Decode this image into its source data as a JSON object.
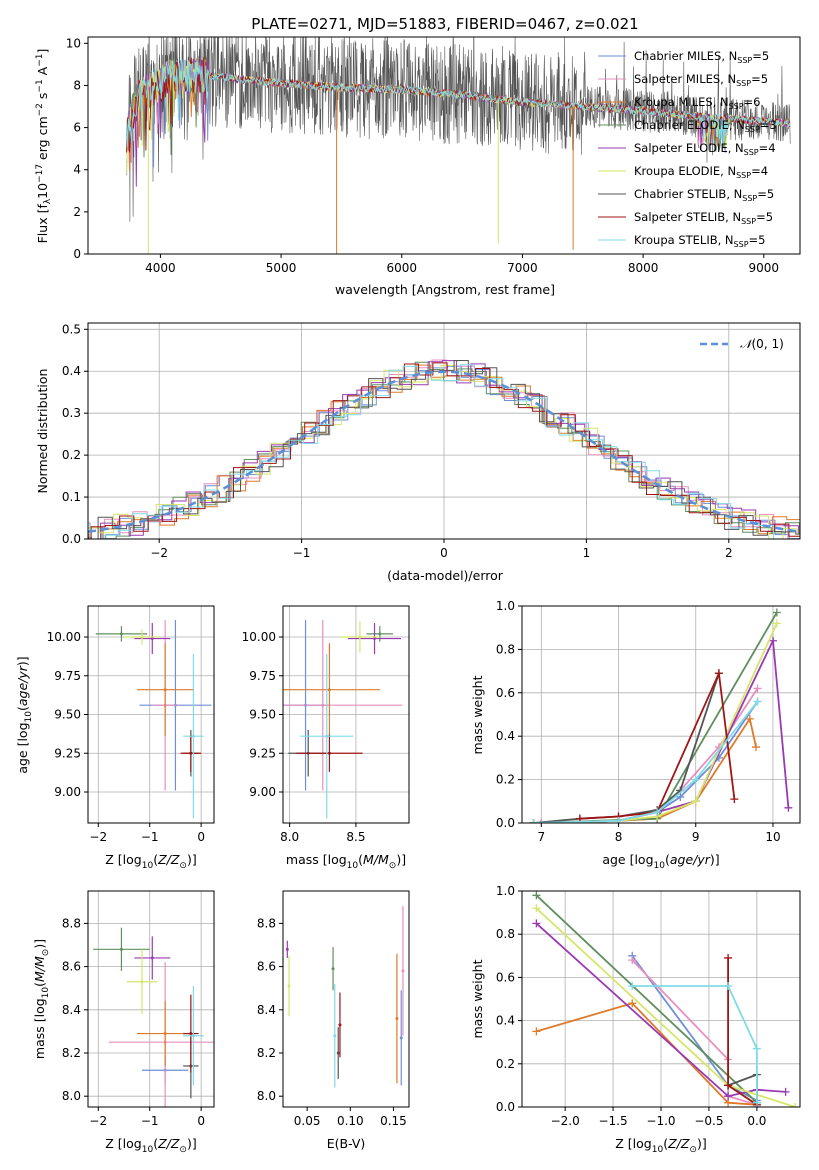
{
  "figure_title": "PLATE=0271, MJD=51883, FIBERID=0467, z=0.021",
  "colors": [
    "#6f8fd8",
    "#e88fc0",
    "#e07a2a",
    "#5f8f5f",
    "#9a3ab3",
    "#d6e66a",
    "#555555",
    "#a01515",
    "#7fdbe6"
  ],
  "models": [
    {
      "imf": "Chabrier",
      "lib": "MILES",
      "nssp": "5"
    },
    {
      "imf": "Salpeter",
      "lib": "MILES",
      "nssp": "5"
    },
    {
      "imf": "Kroupa",
      "lib": "MILES",
      "nssp": "6"
    },
    {
      "imf": "Chabrier",
      "lib": "ELODIE",
      "nssp": "3"
    },
    {
      "imf": "Salpeter",
      "lib": "ELODIE",
      "nssp": "4"
    },
    {
      "imf": "Kroupa",
      "lib": "ELODIE",
      "nssp": "4"
    },
    {
      "imf": "Chabrier",
      "lib": "STELIB",
      "nssp": "5"
    },
    {
      "imf": "Salpeter",
      "lib": "STELIB",
      "nssp": "5"
    },
    {
      "imf": "Kroupa",
      "lib": "STELIB",
      "nssp": "5"
    }
  ],
  "chart_data": [
    {
      "id": "spectrum",
      "type": "line",
      "title": "PLATE=0271, MJD=51883, FIBERID=0467, z=0.021",
      "xlabel": "wavelength [Angstrom, rest frame]",
      "ylabel": "Flux [f_λ 10^-17 erg cm^-2 s^-1 A^-1]",
      "xlim": [
        3400,
        9300
      ],
      "ylim": [
        0,
        10.3
      ],
      "xticks": [
        4000,
        5000,
        6000,
        7000,
        8000,
        9000
      ],
      "yticks": [
        0,
        2,
        4,
        6,
        8,
        10
      ],
      "grid": false,
      "legend": "top-right",
      "continuum": [
        [
          3720,
          5.6
        ],
        [
          3800,
          7.4
        ],
        [
          3900,
          7.8
        ],
        [
          4000,
          8.1
        ],
        [
          4100,
          8.4
        ],
        [
          4300,
          8.5
        ],
        [
          4500,
          8.4
        ],
        [
          5000,
          8.1
        ],
        [
          5500,
          7.9
        ],
        [
          6000,
          7.8
        ],
        [
          6500,
          7.55
        ],
        [
          7000,
          7.2
        ],
        [
          7500,
          7.0
        ],
        [
          8000,
          6.8
        ],
        [
          8500,
          6.5
        ],
        [
          9000,
          6.3
        ],
        [
          9220,
          6.2
        ]
      ],
      "data_extent": [
        3720,
        9220
      ],
      "dips": [
        {
          "model": 2,
          "x": 5460,
          "to": 0
        },
        {
          "model": 2,
          "x": 7420,
          "to": 0.2
        },
        {
          "model": 5,
          "x": 3900,
          "to": 0
        },
        {
          "model": 5,
          "x": 6800,
          "to": 0.5
        }
      ]
    },
    {
      "id": "residuals",
      "type": "area",
      "xlabel": "(data-model)/error",
      "ylabel": "Normed distribution",
      "xlim": [
        -2.5,
        2.5
      ],
      "ylim": [
        0,
        0.515
      ],
      "xticks": [
        -2,
        -1,
        0,
        1,
        2
      ],
      "yticks": [
        0.0,
        0.1,
        0.2,
        0.3,
        0.4,
        0.5
      ],
      "grid": true,
      "legend": "top-right",
      "bin_width": 0.1,
      "reference_series": "N(0,1)"
    },
    {
      "id": "Z_age",
      "type": "scatter",
      "xlabel": "Z [log10(Z/Z_sun)]",
      "ylabel": "age [log10(age/yr)]",
      "xlim": [
        -2.2,
        0.25
      ],
      "ylim": [
        8.8,
        10.2
      ],
      "xticks": [
        -2,
        -1,
        0
      ],
      "yticks": [
        9.0,
        9.25,
        9.5,
        9.75,
        10.0
      ],
      "grid": true,
      "points": [
        {
          "m": 0,
          "x": -0.5,
          "y": 9.56,
          "xerr": 0.7,
          "yerr": 0.55
        },
        {
          "m": 1,
          "x": -0.7,
          "y": 9.56,
          "xerr": 0.25,
          "yerr": 0.55
        },
        {
          "m": 2,
          "x": -0.7,
          "y": 9.66,
          "xerr": 0.55,
          "yerr": 0.3
        },
        {
          "m": 3,
          "x": -1.55,
          "y": 10.02,
          "xerr": 0.5,
          "yerr": 0.05
        },
        {
          "m": 4,
          "x": -0.95,
          "y": 9.99,
          "xerr": 0.35,
          "yerr": 0.1
        },
        {
          "m": 5,
          "x": -1.15,
          "y": 10.0,
          "xerr": 0.35,
          "yerr": 0.05
        },
        {
          "m": 6,
          "x": -0.2,
          "y": 9.25,
          "xerr": 0.15,
          "yerr": 0.15
        },
        {
          "m": 7,
          "x": -0.2,
          "y": 9.25,
          "xerr": 0.2,
          "yerr": 0.12
        },
        {
          "m": 8,
          "x": -0.15,
          "y": 9.36,
          "xerr": 0.2,
          "yerr": 0.53
        }
      ]
    },
    {
      "id": "mass_age",
      "type": "scatter",
      "xlabel": "mass [log10(M/M_sun)]",
      "ylabel": "",
      "xlim": [
        7.95,
        8.9
      ],
      "ylim": [
        8.8,
        10.2
      ],
      "xticks": [
        8.0,
        8.5
      ],
      "yticks": [
        9.0,
        9.25,
        9.5,
        9.75,
        10.0
      ],
      "grid": true,
      "points": [
        {
          "m": 0,
          "x": 8.12,
          "y": 9.56,
          "xerr": 0.17,
          "yerr": 0.55
        },
        {
          "m": 1,
          "x": 8.25,
          "y": 9.56,
          "xerr": 0.6,
          "yerr": 0.55
        },
        {
          "m": 2,
          "x": 8.3,
          "y": 9.66,
          "xerr": 0.38,
          "yerr": 0.3
        },
        {
          "m": 3,
          "x": 8.68,
          "y": 10.02,
          "xerr": 0.1,
          "yerr": 0.05
        },
        {
          "m": 4,
          "x": 8.64,
          "y": 9.99,
          "xerr": 0.2,
          "yerr": 0.1
        },
        {
          "m": 5,
          "x": 8.53,
          "y": 10.0,
          "xerr": 0.15,
          "yerr": 0.1
        },
        {
          "m": 6,
          "x": 8.14,
          "y": 9.25,
          "xerr": 0.15,
          "yerr": 0.15
        },
        {
          "m": 7,
          "x": 8.3,
          "y": 9.25,
          "xerr": 0.25,
          "yerr": 0.12
        },
        {
          "m": 8,
          "x": 8.28,
          "y": 9.36,
          "xerr": 0.2,
          "yerr": 0.53
        }
      ]
    },
    {
      "id": "age_weight",
      "type": "line",
      "xlabel": "age [log10(age/yr)]",
      "ylabel": "mass weight",
      "xlim": [
        6.75,
        10.35
      ],
      "ylim": [
        0,
        1.0
      ],
      "xticks": [
        7,
        8,
        9,
        10
      ],
      "yticks": [
        0.0,
        0.2,
        0.4,
        0.6,
        0.8,
        1.0
      ],
      "grid": true,
      "series": [
        {
          "m": 0,
          "x": [
            7.0,
            8.0,
            8.5,
            8.8,
            9.3,
            9.8
          ],
          "y": [
            0.0,
            0.01,
            0.05,
            0.12,
            0.3,
            0.56
          ]
        },
        {
          "m": 1,
          "x": [
            7.0,
            8.0,
            8.5,
            8.8,
            9.3,
            9.8
          ],
          "y": [
            0.0,
            0.01,
            0.05,
            0.15,
            0.35,
            0.62
          ]
        },
        {
          "m": 2,
          "x": [
            6.9,
            8.0,
            8.5,
            9.0,
            9.7,
            9.78
          ],
          "y": [
            0.0,
            0.01,
            0.02,
            0.1,
            0.48,
            0.35
          ]
        },
        {
          "m": 3,
          "x": [
            6.9,
            8.5,
            10.05
          ],
          "y": [
            0.0,
            0.02,
            0.97
          ]
        },
        {
          "m": 4,
          "x": [
            6.9,
            8.0,
            8.5,
            9.0,
            10.0,
            10.2
          ],
          "y": [
            0.0,
            0.01,
            0.05,
            0.1,
            0.84,
            0.07
          ]
        },
        {
          "m": 5,
          "x": [
            6.9,
            8.0,
            8.5,
            9.0,
            10.05
          ],
          "y": [
            0.0,
            0.01,
            0.03,
            0.1,
            0.92
          ]
        },
        {
          "m": 6,
          "x": [
            6.9,
            7.5,
            8.0,
            8.5,
            8.8,
            9.3
          ],
          "y": [
            0.0,
            0.02,
            0.03,
            0.06,
            0.15,
            0.69
          ]
        },
        {
          "m": 7,
          "x": [
            7.5,
            8.0,
            8.5,
            9.3,
            9.5
          ],
          "y": [
            0.02,
            0.03,
            0.05,
            0.69,
            0.11
          ]
        },
        {
          "m": 8,
          "x": [
            6.9,
            8.0,
            8.5,
            9.0,
            9.8
          ],
          "y": [
            0.0,
            0.01,
            0.05,
            0.2,
            0.56
          ]
        }
      ]
    },
    {
      "id": "Z_mass",
      "type": "scatter",
      "xlabel": "Z [log10(Z/Z_sun)]",
      "ylabel": "mass [log10(M/M_sun)]",
      "xlim": [
        -2.2,
        0.25
      ],
      "ylim": [
        7.95,
        8.95
      ],
      "xticks": [
        -2,
        -1,
        0
      ],
      "yticks": [
        8.0,
        8.2,
        8.4,
        8.6,
        8.8
      ],
      "grid": true,
      "points": [
        {
          "m": 0,
          "x": -0.7,
          "y": 8.12,
          "xerr": 0.45,
          "yerr": 0.06
        },
        {
          "m": 1,
          "x": -0.7,
          "y": 8.25,
          "xerr": 1.1,
          "yerr": 0.37
        },
        {
          "m": 2,
          "x": -0.7,
          "y": 8.29,
          "xerr": 0.55,
          "yerr": 0.15
        },
        {
          "m": 3,
          "x": -1.55,
          "y": 8.68,
          "xerr": 0.55,
          "yerr": 0.1
        },
        {
          "m": 4,
          "x": -0.95,
          "y": 8.64,
          "xerr": 0.35,
          "yerr": 0.1
        },
        {
          "m": 5,
          "x": -1.15,
          "y": 8.53,
          "xerr": 0.3,
          "yerr": 0.15
        },
        {
          "m": 6,
          "x": -0.2,
          "y": 8.14,
          "xerr": 0.15,
          "yerr": 0.15
        },
        {
          "m": 7,
          "x": -0.2,
          "y": 8.29,
          "xerr": 0.15,
          "yerr": 0.18
        },
        {
          "m": 8,
          "x": -0.15,
          "y": 8.28,
          "xerr": 0.2,
          "yerr": 0.23
        }
      ]
    },
    {
      "id": "ebv_mass",
      "type": "scatter",
      "xlabel": "E(B-V)",
      "ylabel": "",
      "xlim": [
        0.022,
        0.168
      ],
      "ylim": [
        7.95,
        8.95
      ],
      "xticks": [
        0.05,
        0.1,
        0.15
      ],
      "yticks": [
        8.0,
        8.2,
        8.4,
        8.6,
        8.8
      ],
      "grid": false,
      "points": [
        {
          "m": 0,
          "x": 0.159,
          "y": 8.27,
          "yerr": 0.22
        },
        {
          "m": 1,
          "x": 0.161,
          "y": 8.58,
          "yerr": 0.3
        },
        {
          "m": 2,
          "x": 0.154,
          "y": 8.36,
          "yerr": 0.3
        },
        {
          "m": 3,
          "x": 0.08,
          "y": 8.59,
          "yerr": 0.1
        },
        {
          "m": 4,
          "x": 0.027,
          "y": 8.68,
          "yerr": 0.04
        },
        {
          "m": 5,
          "x": 0.029,
          "y": 8.51,
          "yerr": 0.14
        },
        {
          "m": 6,
          "x": 0.086,
          "y": 8.2,
          "yerr": 0.12
        },
        {
          "m": 7,
          "x": 0.088,
          "y": 8.33,
          "yerr": 0.15
        },
        {
          "m": 8,
          "x": 0.082,
          "y": 8.28,
          "yerr": 0.24
        }
      ]
    },
    {
      "id": "Z_weight",
      "type": "line",
      "xlabel": "Z [log10(Z/Z_sun)]",
      "ylabel": "mass weight",
      "xlim": [
        -2.45,
        0.45
      ],
      "ylim": [
        0,
        1.0
      ],
      "xticks": [
        -2.0,
        -1.5,
        -1.0,
        -0.5,
        0.0
      ],
      "yticks": [
        0.0,
        0.2,
        0.4,
        0.6,
        0.8,
        1.0
      ],
      "grid": true,
      "series": [
        {
          "m": 0,
          "x": [
            -1.3,
            -0.3,
            0.0
          ],
          "y": [
            0.7,
            0.1,
            0.03
          ]
        },
        {
          "m": 1,
          "x": [
            -1.3,
            -0.3,
            -0.3,
            0.0
          ],
          "y": [
            0.68,
            0.22,
            0.05,
            0.01
          ]
        },
        {
          "m": 2,
          "x": [
            -2.3,
            -1.3,
            -0.3,
            0.0
          ],
          "y": [
            0.35,
            0.48,
            0.02,
            0.01
          ]
        },
        {
          "m": 3,
          "x": [
            -2.3,
            0.0
          ],
          "y": [
            0.98,
            0.02
          ]
        },
        {
          "m": 4,
          "x": [
            -2.3,
            -0.3,
            0.0,
            0.3
          ],
          "y": [
            0.85,
            0.05,
            0.08,
            0.07
          ]
        },
        {
          "m": 5,
          "x": [
            -2.3,
            -0.3,
            0.4
          ],
          "y": [
            0.92,
            0.1,
            0.0
          ]
        },
        {
          "m": 6,
          "x": [
            -0.3,
            0.0,
            0.0
          ],
          "y": [
            0.1,
            0.15,
            0.0
          ]
        },
        {
          "m": 7,
          "x": [
            -0.3,
            -0.3,
            0.0
          ],
          "y": [
            0.69,
            0.1,
            0.01
          ]
        },
        {
          "m": 8,
          "x": [
            -1.3,
            -0.3,
            0.0,
            0.0
          ],
          "y": [
            0.56,
            0.56,
            0.27,
            0.02
          ]
        }
      ]
    }
  ],
  "reference_label": "N(0,1)"
}
